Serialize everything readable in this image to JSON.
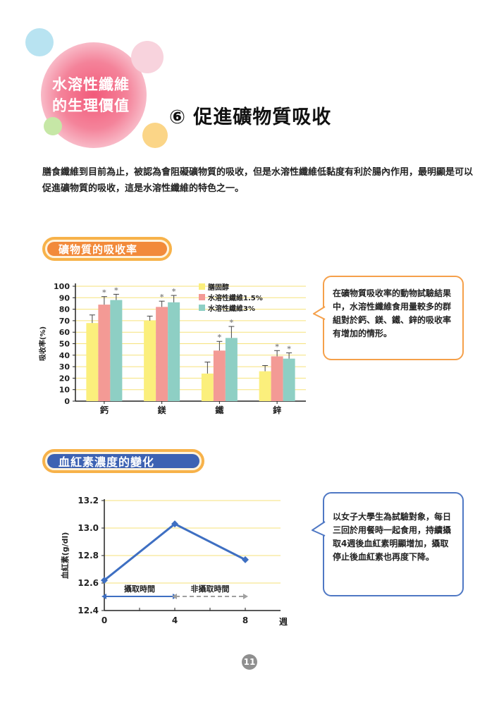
{
  "header": {
    "badge_title": "水溶性纖維的生理價值",
    "page_title": "⑥ 促進礦物質吸收",
    "colors": {
      "badge": "#f25a7a",
      "accent_orange": "#f28a3a",
      "accent_blue": "#3d62b3"
    }
  },
  "intro": "膳食纖維到目前為止，被認為會阻礙礦物質的吸收，但是水溶性纖維低黏度有利於腸內作用，最明顯是可以促進礦物質的吸收，這是水溶性纖維的特色之一。",
  "section1": {
    "title": "礦物質的吸收率",
    "callout": "在礦物質吸收率的動物試驗結果中，水溶性纖維食用量較多的群組對於鈣、鎂、鐵、鋅的吸收率有增加的情形。"
  },
  "section2": {
    "title": "血紅素濃度的變化",
    "callout": "以女子大學生為試驗對象，每日三回於用餐時一起食用，持續攝取4週後血紅素明顯增加，攝取停止後血紅素也再度下降。"
  },
  "chart_data": [
    {
      "type": "bar",
      "categories": [
        "鈣",
        "鎂",
        "鐵",
        "鋅"
      ],
      "series": [
        {
          "name": "膳固醇",
          "values": [
            68,
            70,
            24,
            26
          ],
          "errors": [
            7,
            4,
            10,
            5
          ],
          "color": "#fbef7c",
          "marks": [
            false,
            false,
            false,
            false
          ]
        },
        {
          "name": "水溶性纖維1.5%",
          "values": [
            84,
            82,
            44,
            39
          ],
          "errors": [
            7,
            5,
            8,
            5
          ],
          "color": "#f39a95",
          "marks": [
            true,
            true,
            true,
            true
          ]
        },
        {
          "name": "水溶性纖維3%",
          "values": [
            88,
            86,
            55,
            37
          ],
          "errors": [
            5,
            6,
            10,
            5
          ],
          "color": "#8ecfc4",
          "marks": [
            true,
            true,
            true,
            true
          ]
        }
      ],
      "mark_symbol": "*",
      "ylabel": "吸收率(%)",
      "ylim": [
        0,
        100
      ],
      "yticks": [
        0,
        10,
        20,
        30,
        40,
        50,
        60,
        70,
        80,
        90,
        100
      ],
      "grid": true,
      "legend_position": "top-right"
    },
    {
      "type": "line",
      "x": [
        0,
        4,
        8
      ],
      "y": [
        12.62,
        13.03,
        12.77
      ],
      "xticks": [
        "0",
        "4",
        "8"
      ],
      "xunit": "週",
      "ylabel": "血紅素(g/dl)",
      "ylim": [
        12.4,
        13.2
      ],
      "yticks": [
        "12.4",
        "12.6",
        "12.8",
        "13.0",
        "13.2"
      ],
      "color": "#3e6fc2",
      "grid": true,
      "periods": [
        {
          "label": "攝取時間",
          "from": 0,
          "to": 4,
          "style": "solid",
          "color": "#3e6fc2"
        },
        {
          "label": "非攝取時間",
          "from": 4,
          "to": 8,
          "style": "dashed",
          "color": "#a0a0a0"
        }
      ]
    }
  ],
  "page_number": "11"
}
